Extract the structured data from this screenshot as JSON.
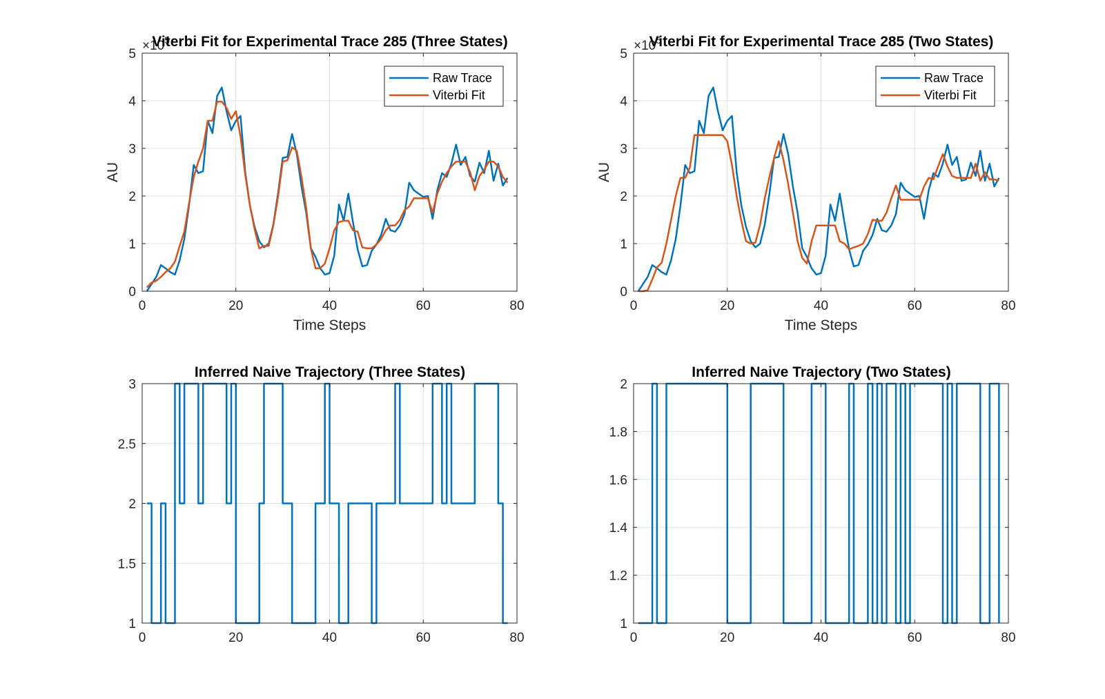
{
  "figure": {
    "background": "#ffffff"
  },
  "colors": {
    "raw": "#0072BD",
    "viterbi": "#D95319",
    "axis": "#262626",
    "grid": "#e0e0e0"
  },
  "chart_data": [
    {
      "id": "viterbi-three",
      "type": "line",
      "title": "Viterbi Fit for Experimental Trace 285 (Three States)",
      "xlabel": "Time Steps",
      "ylabel": "AU",
      "exponent_label": "×10^5",
      "y_scale": 100000,
      "xlim": [
        0,
        80
      ],
      "ylim": [
        0,
        500000
      ],
      "xticks": [
        0,
        20,
        40,
        60,
        80
      ],
      "yticks": [
        0,
        100000,
        200000,
        300000,
        400000,
        500000
      ],
      "ytick_labels": [
        "0",
        "1",
        "2",
        "3",
        "4",
        "5"
      ],
      "grid": true,
      "legend": {
        "position": "top-right",
        "entries": [
          "Raw Trace",
          "Viterbi Fit"
        ]
      },
      "series": [
        {
          "name": "Raw Trace",
          "color": "#0072BD",
          "x": [
            1,
            2,
            3,
            4,
            5,
            6,
            7,
            8,
            9,
            10,
            11,
            12,
            13,
            14,
            15,
            16,
            17,
            18,
            19,
            20,
            21,
            22,
            23,
            24,
            25,
            26,
            27,
            28,
            29,
            30,
            31,
            32,
            33,
            34,
            35,
            36,
            37,
            38,
            39,
            40,
            41,
            42,
            43,
            44,
            45,
            46,
            47,
            48,
            49,
            50,
            51,
            52,
            53,
            54,
            55,
            56,
            57,
            58,
            59,
            60,
            61,
            62,
            63,
            64,
            65,
            66,
            67,
            68,
            69,
            70,
            71,
            72,
            73,
            74,
            75,
            76,
            77,
            78
          ],
          "y": [
            0,
            15000,
            30000,
            55000,
            48000,
            40000,
            35000,
            65000,
            110000,
            180000,
            265000,
            248000,
            252000,
            358000,
            332000,
            410000,
            428000,
            378000,
            338000,
            358000,
            368000,
            250000,
            180000,
            135000,
            105000,
            92000,
            100000,
            140000,
            205000,
            280000,
            282000,
            330000,
            288000,
            220000,
            165000,
            90000,
            72000,
            48000,
            35000,
            38000,
            75000,
            182000,
            148000,
            205000,
            145000,
            88000,
            52000,
            55000,
            85000,
            98000,
            118000,
            152000,
            128000,
            125000,
            138000,
            162000,
            228000,
            212000,
            205000,
            198000,
            200000,
            152000,
            212000,
            248000,
            240000,
            268000,
            308000,
            265000,
            282000,
            242000,
            230000,
            270000,
            248000,
            295000,
            232000,
            268000,
            222000,
            238000
          ]
        },
        {
          "name": "Viterbi Fit",
          "color": "#D95319",
          "x": [
            1,
            2,
            3,
            4,
            5,
            6,
            7,
            8,
            9,
            10,
            11,
            12,
            13,
            14,
            15,
            16,
            17,
            18,
            19,
            20,
            21,
            22,
            23,
            24,
            25,
            26,
            27,
            28,
            29,
            30,
            31,
            32,
            33,
            34,
            35,
            36,
            37,
            38,
            39,
            40,
            41,
            42,
            43,
            44,
            45,
            46,
            47,
            48,
            49,
            50,
            51,
            52,
            53,
            54,
            55,
            56,
            57,
            58,
            59,
            60,
            61,
            62,
            63,
            64,
            65,
            66,
            67,
            68,
            69,
            70,
            71,
            72,
            73,
            74,
            75,
            76,
            77,
            78
          ],
          "y": [
            8000,
            18000,
            22000,
            30000,
            40000,
            48000,
            62000,
            95000,
            125000,
            185000,
            240000,
            272000,
            300000,
            358000,
            358000,
            398000,
            398000,
            385000,
            362000,
            378000,
            325000,
            245000,
            180000,
            130000,
            90000,
            95000,
            95000,
            138000,
            198000,
            272000,
            275000,
            302000,
            295000,
            240000,
            175000,
            90000,
            48000,
            48000,
            58000,
            90000,
            128000,
            145000,
            148000,
            148000,
            128000,
            125000,
            92000,
            90000,
            90000,
            98000,
            110000,
            128000,
            138000,
            138000,
            150000,
            170000,
            178000,
            195000,
            195000,
            195000,
            195000,
            165000,
            205000,
            230000,
            248000,
            262000,
            272000,
            272000,
            272000,
            250000,
            212000,
            242000,
            255000,
            272000,
            272000,
            262000,
            240000,
            228000
          ]
        }
      ]
    },
    {
      "id": "viterbi-two",
      "type": "line",
      "title": "Viterbi Fit for Experimental Trace  285 (Two States)",
      "xlabel": "Time Steps",
      "ylabel": "AU",
      "exponent_label": "×10^5",
      "y_scale": 100000,
      "xlim": [
        0,
        80
      ],
      "ylim": [
        0,
        500000
      ],
      "xticks": [
        0,
        20,
        40,
        60,
        80
      ],
      "yticks": [
        0,
        100000,
        200000,
        300000,
        400000,
        500000
      ],
      "ytick_labels": [
        "0",
        "1",
        "2",
        "3",
        "4",
        "5"
      ],
      "grid": true,
      "legend": {
        "position": "top-right",
        "entries": [
          "Raw Trace",
          "Viterbi Fit"
        ]
      },
      "series": [
        {
          "name": "Raw Trace",
          "color": "#0072BD",
          "x": [
            1,
            2,
            3,
            4,
            5,
            6,
            7,
            8,
            9,
            10,
            11,
            12,
            13,
            14,
            15,
            16,
            17,
            18,
            19,
            20,
            21,
            22,
            23,
            24,
            25,
            26,
            27,
            28,
            29,
            30,
            31,
            32,
            33,
            34,
            35,
            36,
            37,
            38,
            39,
            40,
            41,
            42,
            43,
            44,
            45,
            46,
            47,
            48,
            49,
            50,
            51,
            52,
            53,
            54,
            55,
            56,
            57,
            58,
            59,
            60,
            61,
            62,
            63,
            64,
            65,
            66,
            67,
            68,
            69,
            70,
            71,
            72,
            73,
            74,
            75,
            76,
            77,
            78
          ],
          "y": [
            0,
            15000,
            30000,
            55000,
            48000,
            40000,
            35000,
            65000,
            110000,
            180000,
            265000,
            248000,
            252000,
            358000,
            332000,
            410000,
            428000,
            378000,
            338000,
            358000,
            368000,
            250000,
            180000,
            135000,
            105000,
            92000,
            100000,
            140000,
            205000,
            280000,
            282000,
            330000,
            288000,
            220000,
            165000,
            90000,
            72000,
            48000,
            35000,
            38000,
            75000,
            182000,
            148000,
            205000,
            145000,
            88000,
            52000,
            55000,
            85000,
            98000,
            118000,
            152000,
            128000,
            125000,
            138000,
            162000,
            228000,
            212000,
            205000,
            198000,
            200000,
            152000,
            212000,
            248000,
            240000,
            268000,
            308000,
            265000,
            282000,
            232000,
            235000,
            270000,
            242000,
            295000,
            232000,
            268000,
            220000,
            238000
          ]
        },
        {
          "name": "Viterbi Fit",
          "color": "#D95319",
          "x": [
            1,
            2,
            3,
            4,
            5,
            6,
            7,
            8,
            9,
            10,
            11,
            12,
            13,
            14,
            15,
            16,
            17,
            18,
            19,
            20,
            21,
            22,
            23,
            24,
            25,
            26,
            27,
            28,
            29,
            30,
            31,
            32,
            33,
            34,
            35,
            36,
            37,
            38,
            39,
            40,
            41,
            42,
            43,
            44,
            45,
            46,
            47,
            48,
            49,
            50,
            51,
            52,
            53,
            54,
            55,
            56,
            57,
            58,
            59,
            60,
            61,
            62,
            63,
            64,
            65,
            66,
            67,
            68,
            69,
            70,
            71,
            72,
            73,
            74,
            75,
            76,
            77,
            78
          ],
          "y": [
            0,
            0,
            2000,
            25000,
            50000,
            60000,
            100000,
            150000,
            200000,
            238000,
            238000,
            260000,
            328000,
            328000,
            328000,
            328000,
            328000,
            328000,
            328000,
            315000,
            265000,
            200000,
            148000,
            105000,
            100000,
            102000,
            140000,
            195000,
            240000,
            280000,
            315000,
            275000,
            225000,
            165000,
            105000,
            70000,
            58000,
            105000,
            138000,
            138000,
            138000,
            138000,
            138000,
            105000,
            100000,
            88000,
            92000,
            95000,
            100000,
            120000,
            150000,
            148000,
            148000,
            165000,
            195000,
            222000,
            192000,
            192000,
            192000,
            192000,
            192000,
            220000,
            238000,
            235000,
            262000,
            288000,
            262000,
            242000,
            238000,
            238000,
            238000,
            238000,
            268000,
            232000,
            250000,
            235000,
            235000,
            232000
          ]
        }
      ]
    },
    {
      "id": "trajectory-three",
      "type": "line",
      "step": true,
      "title": "Inferred Naive Trajectory (Three States)",
      "xlabel": "",
      "ylabel": "",
      "xlim": [
        0,
        80
      ],
      "ylim": [
        1,
        3
      ],
      "xticks": [
        0,
        20,
        40,
        60,
        80
      ],
      "yticks": [
        1,
        1.5,
        2,
        2.5,
        3
      ],
      "ytick_labels": [
        "1",
        "1.5",
        "2",
        "2.5",
        "3"
      ],
      "grid": true,
      "series": [
        {
          "color": "#0072BD",
          "x": [
            1,
            2,
            3,
            4,
            5,
            6,
            7,
            8,
            9,
            10,
            11,
            12,
            13,
            14,
            15,
            16,
            17,
            18,
            19,
            20,
            21,
            22,
            23,
            24,
            25,
            26,
            27,
            28,
            29,
            30,
            31,
            32,
            33,
            34,
            35,
            36,
            37,
            38,
            39,
            40,
            41,
            42,
            43,
            44,
            45,
            46,
            47,
            48,
            49,
            50,
            51,
            52,
            53,
            54,
            55,
            56,
            57,
            58,
            59,
            60,
            61,
            62,
            63,
            64,
            65,
            66,
            67,
            68,
            69,
            70,
            71,
            72,
            73,
            74,
            75,
            76,
            77,
            78
          ],
          "y": [
            2,
            1,
            1,
            2,
            1,
            1,
            3,
            2,
            3,
            3,
            3,
            2,
            3,
            3,
            3,
            3,
            3,
            2,
            3,
            1,
            1,
            1,
            1,
            1,
            2,
            3,
            3,
            3,
            3,
            2,
            2,
            1,
            1,
            1,
            1,
            1,
            2,
            2,
            3,
            2,
            2,
            1,
            1,
            2,
            2,
            2,
            2,
            2,
            1,
            2,
            2,
            2,
            2,
            3,
            2,
            2,
            2,
            2,
            2,
            2,
            2,
            3,
            3,
            2,
            3,
            2,
            2,
            2,
            2,
            2,
            3,
            3,
            3,
            3,
            3,
            2,
            1,
            1
          ]
        }
      ]
    },
    {
      "id": "trajectory-two",
      "type": "line",
      "step": true,
      "title": "Inferred Naive Trajectory (Two States)",
      "xlabel": "",
      "ylabel": "",
      "xlim": [
        0,
        80
      ],
      "ylim": [
        1,
        2
      ],
      "xticks": [
        0,
        20,
        40,
        60,
        80
      ],
      "yticks": [
        1,
        1.2,
        1.4,
        1.6,
        1.8,
        2
      ],
      "ytick_labels": [
        "1",
        "1.2",
        "1.4",
        "1.6",
        "1.8",
        "2"
      ],
      "grid": true,
      "series": [
        {
          "color": "#0072BD",
          "x": [
            1,
            2,
            3,
            4,
            5,
            6,
            7,
            8,
            9,
            10,
            11,
            12,
            13,
            14,
            15,
            16,
            17,
            18,
            19,
            20,
            21,
            22,
            23,
            24,
            25,
            26,
            27,
            28,
            29,
            30,
            31,
            32,
            33,
            34,
            35,
            36,
            37,
            38,
            39,
            40,
            41,
            42,
            43,
            44,
            45,
            46,
            47,
            48,
            49,
            50,
            51,
            52,
            53,
            54,
            55,
            56,
            57,
            58,
            59,
            60,
            61,
            62,
            63,
            64,
            65,
            66,
            67,
            68,
            69,
            70,
            71,
            72,
            73,
            74,
            75,
            76,
            77,
            78
          ],
          "y": [
            1,
            1,
            1,
            2,
            1,
            1,
            2,
            2,
            2,
            2,
            2,
            2,
            2,
            2,
            2,
            2,
            2,
            2,
            2,
            1,
            1,
            1,
            1,
            1,
            2,
            2,
            2,
            2,
            2,
            2,
            2,
            1,
            1,
            1,
            1,
            1,
            1,
            2,
            2,
            2,
            1,
            1,
            1,
            1,
            1,
            2,
            1,
            1,
            1,
            2,
            1,
            2,
            1,
            2,
            2,
            1,
            2,
            1,
            2,
            2,
            2,
            2,
            2,
            2,
            2,
            1,
            2,
            1,
            2,
            2,
            2,
            2,
            2,
            1,
            1,
            2,
            2,
            1
          ]
        }
      ]
    }
  ]
}
